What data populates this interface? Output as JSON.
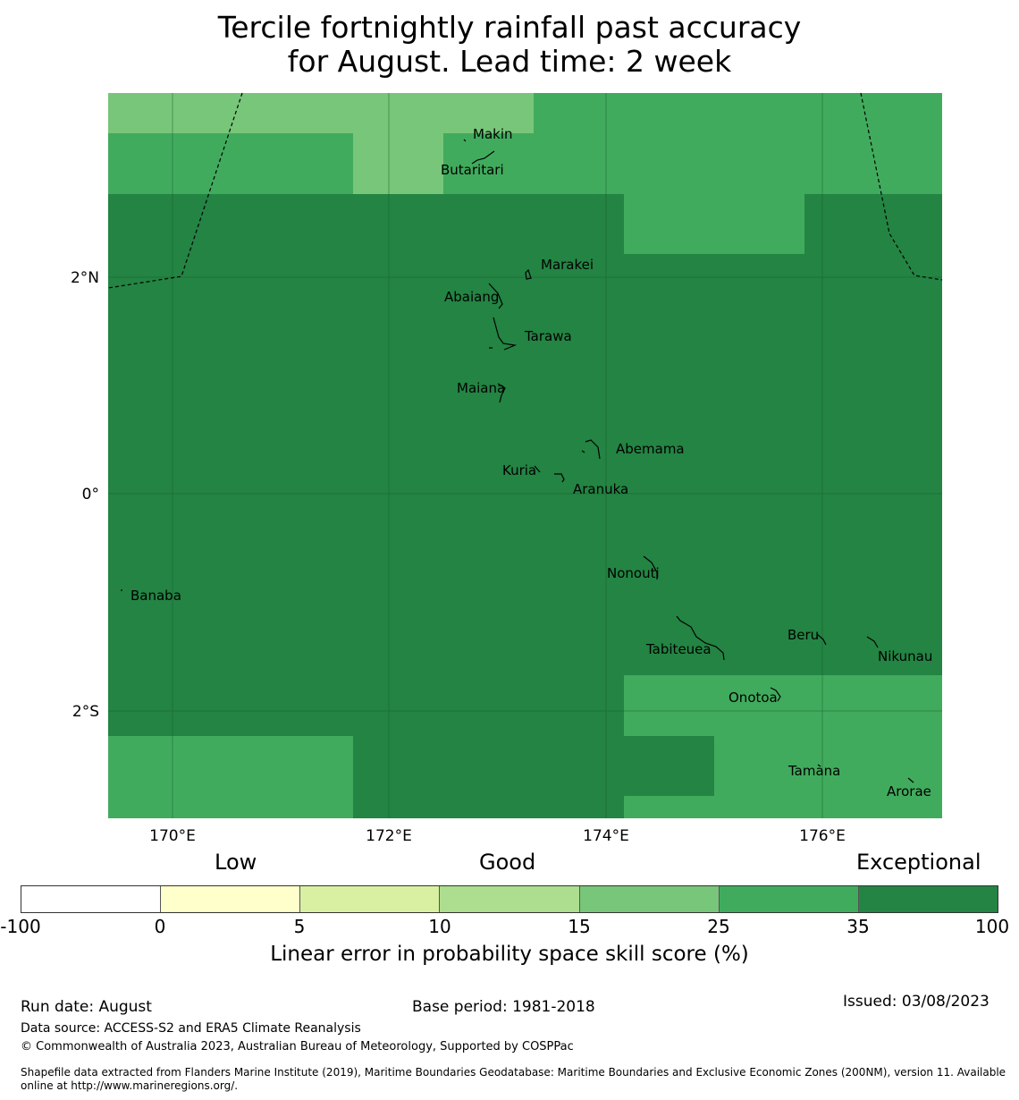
{
  "title_line1": "Tercile fortnightly rainfall past accuracy",
  "title_line2": "for August. Lead time: 2 week",
  "axes": {
    "lon_ticks": [
      "170°E",
      "172°E",
      "174°E",
      "176°E"
    ],
    "lat_ticks": [
      "2°N",
      "0°",
      "2°S"
    ]
  },
  "islands": [
    {
      "name": "Makin"
    },
    {
      "name": "Butaritari"
    },
    {
      "name": "Marakei"
    },
    {
      "name": "Abaiang"
    },
    {
      "name": "Tarawa"
    },
    {
      "name": "Maiana"
    },
    {
      "name": "Abemama"
    },
    {
      "name": "Kuria"
    },
    {
      "name": "Aranuka"
    },
    {
      "name": "Nonouti"
    },
    {
      "name": "Banaba"
    },
    {
      "name": "Tabiteuea"
    },
    {
      "name": "Beru"
    },
    {
      "name": "Nikunau"
    },
    {
      "name": "Onotoa"
    },
    {
      "name": "Tamana"
    },
    {
      "name": "Arorae"
    }
  ],
  "legend": {
    "categories": [
      "Low",
      "Good",
      "Exceptional"
    ],
    "ticks": [
      "-100",
      "0",
      "5",
      "10",
      "15",
      "25",
      "35",
      "100"
    ],
    "colors": [
      "#ffffff",
      "#ffffcc",
      "#d9f0a3",
      "#addd8e",
      "#78c679",
      "#41ab5d",
      "#238443"
    ],
    "label": "Linear error in probability space skill score (%)"
  },
  "footer": {
    "run_date": "Run date: August",
    "base_period": "Base period: 1981-2018",
    "issued": "Issued: 03/08/2023",
    "data_source": "Data source: ACCESS-S2 and ERA5 Climate Reanalysis",
    "copyright": "© Commonwealth of Australia 2023, Australian Bureau of Meteorology, Supported by COSPPac",
    "shapefile_line1": "Shapefile data extracted from Flanders Marine Institute (2019), Maritime Boundaries Geodatabase: Maritime Boundaries and Exclusive Economic Zones (200NM), version 11. Available",
    "shapefile_line2": "online at http://www.marineregions.org/."
  }
}
